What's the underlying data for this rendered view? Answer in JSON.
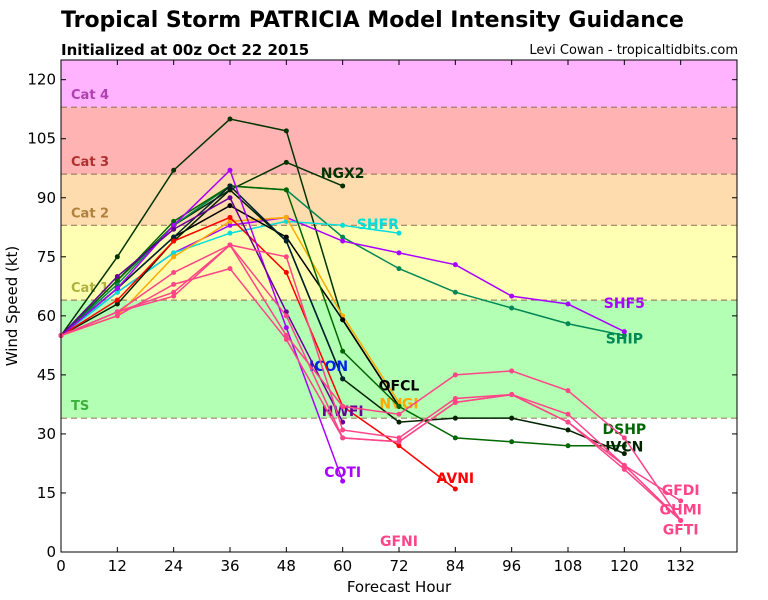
{
  "chart_data": {
    "type": "line",
    "title": "Tropical Storm PATRICIA Model Intensity Guidance",
    "subtitle": "Initialized at 00z Oct 22 2015",
    "credit": "Levi Cowan - tropicaltidbits.com",
    "xlabel": "Forecast Hour",
    "ylabel": "Wind Speed (kt)",
    "xlim": [
      0,
      144
    ],
    "ylim": [
      0,
      125
    ],
    "xticks": [
      0,
      12,
      24,
      36,
      48,
      60,
      72,
      84,
      96,
      108,
      120,
      132
    ],
    "yticks": [
      0,
      15,
      30,
      45,
      60,
      75,
      90,
      105,
      120
    ],
    "bands": [
      {
        "name": "TS",
        "min": 34,
        "max": 64,
        "color": "#b3ffb3",
        "label_color": "#3cb03c"
      },
      {
        "name": "Cat 1",
        "min": 64,
        "max": 83,
        "color": "#ffffb3",
        "label_color": "#b0b040"
      },
      {
        "name": "Cat 2",
        "min": 83,
        "max": 96,
        "color": "#ffdcad",
        "label_color": "#b08040"
      },
      {
        "name": "Cat 3",
        "min": 96,
        "max": 113,
        "color": "#ffb3b3",
        "label_color": "#b03030"
      },
      {
        "name": "Cat 4",
        "min": 113,
        "max": 125,
        "color": "#ffb3ff",
        "label_color": "#b040b0"
      }
    ],
    "series": [
      {
        "name": "",
        "color": "#003300",
        "x": [
          0,
          12,
          24,
          36,
          48,
          60,
          72
        ],
        "y": [
          55,
          75,
          97,
          110,
          107,
          59,
          37
        ]
      },
      {
        "name": "NGX2",
        "color": "#003300",
        "x": [
          0,
          12,
          24,
          36,
          48,
          60
        ],
        "y": [
          55,
          69,
          83,
          92,
          99,
          93
        ]
      },
      {
        "name": "SHIP",
        "color": "#008855",
        "x": [
          0,
          12,
          24,
          36,
          48,
          60,
          72,
          84,
          96,
          108,
          120
        ],
        "y": [
          55,
          68,
          83,
          93,
          92,
          80,
          72,
          66,
          62,
          58,
          55
        ]
      },
      {
        "name": "SHF5",
        "color": "#aa00ff",
        "x": [
          0,
          12,
          24,
          36,
          48,
          60,
          72,
          84,
          96,
          108,
          120
        ],
        "y": [
          55,
          66,
          76,
          83,
          85,
          79,
          76,
          73,
          65,
          63,
          56
        ]
      },
      {
        "name": "SHFR",
        "color": "#00dddd",
        "x": [
          0,
          12,
          24,
          36,
          48,
          60,
          72
        ],
        "y": [
          55,
          66,
          76,
          81,
          84,
          83,
          81
        ]
      },
      {
        "name": "NVGI",
        "color": "#ffaa00",
        "x": [
          0,
          12,
          24,
          36,
          48,
          60,
          72
        ],
        "y": [
          55,
          60,
          75,
          84,
          85,
          60,
          38
        ]
      },
      {
        "name": "OFCL",
        "color": "#000000",
        "x": [
          0,
          12,
          24,
          36,
          48,
          60,
          72
        ],
        "y": [
          55,
          67,
          80,
          88,
          80,
          59,
          37
        ]
      },
      {
        "name": "DSHP",
        "color": "#006600",
        "x": [
          0,
          12,
          24,
          36,
          48,
          60,
          72,
          84,
          96,
          108,
          120
        ],
        "y": [
          55,
          69,
          84,
          93,
          92,
          51,
          37,
          29,
          28,
          27,
          27
        ]
      },
      {
        "name": "IVCN",
        "color": "#002200",
        "x": [
          0,
          12,
          24,
          36,
          48,
          60,
          72,
          84,
          96,
          108,
          120
        ],
        "y": [
          55,
          63,
          79,
          92,
          79,
          44,
          33,
          34,
          34,
          31,
          25
        ]
      },
      {
        "name": "ICON",
        "color": "#002233",
        "x": [
          0,
          12,
          24,
          36,
          48,
          60
        ],
        "y": [
          55,
          67,
          80,
          93,
          79,
          44
        ]
      },
      {
        "name": "AVNI",
        "color": "#ff0000",
        "x": [
          0,
          12,
          24,
          36,
          48,
          60,
          72,
          84
        ],
        "y": [
          55,
          64,
          79,
          85,
          71,
          37,
          27,
          16
        ]
      },
      {
        "name": "COTI",
        "color": "#aa00ff",
        "x": [
          0,
          12,
          24,
          36,
          48,
          60
        ],
        "y": [
          55,
          67,
          83,
          97,
          57,
          18
        ]
      },
      {
        "name": "HWFI",
        "color": "#660099",
        "x": [
          0,
          12,
          24,
          36,
          48,
          60
        ],
        "y": [
          55,
          70,
          82,
          90,
          61,
          33
        ]
      },
      {
        "name": "GFDI",
        "color": "#ff4488",
        "x": [
          0,
          12,
          24,
          36,
          48,
          60,
          72,
          84,
          96,
          108,
          120,
          132
        ],
        "y": [
          55,
          61,
          66,
          78,
          75,
          31,
          29,
          39,
          40,
          35,
          22,
          13
        ]
      },
      {
        "name": "GFNI",
        "color": "#ff4488",
        "x": [
          0,
          12,
          24,
          36,
          48,
          60,
          72,
          84,
          96,
          108,
          120,
          132
        ],
        "y": [
          55,
          61,
          71,
          78,
          55,
          37,
          35,
          45,
          46,
          41,
          29,
          8
        ]
      },
      {
        "name": "GHMI",
        "color": "#ff4488",
        "x": [
          0,
          12,
          24,
          36,
          48,
          60,
          72,
          84,
          96,
          108,
          120,
          132
        ],
        "y": [
          55,
          60,
          68,
          72,
          54,
          29,
          28,
          38,
          40,
          33,
          21,
          8
        ]
      },
      {
        "name": "GFTI",
        "color": "#ff4488",
        "x": [
          0,
          12,
          24,
          36,
          48,
          60,
          72,
          84,
          96,
          108,
          120,
          132
        ],
        "y": [
          55,
          61,
          65,
          78,
          60,
          29,
          28,
          38,
          40,
          33,
          22,
          8
        ]
      }
    ]
  }
}
